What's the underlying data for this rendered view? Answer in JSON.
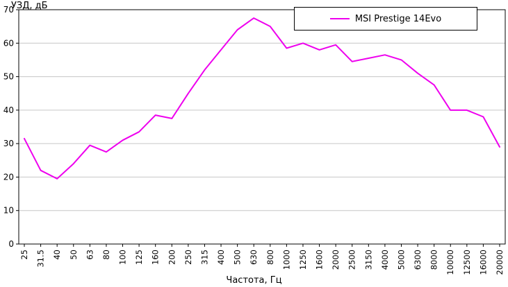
{
  "chart_data": {
    "type": "line",
    "title": "",
    "ylabel": "УЗД, дБ",
    "xlabel": "Частота, Гц",
    "ylim": [
      0,
      70
    ],
    "y_ticks": [
      0,
      10,
      20,
      30,
      40,
      50,
      60,
      70
    ],
    "grid": true,
    "legend_position": "top-right",
    "line_color": "#ee00ee",
    "grid_color": "#c6c6c6",
    "axis_color": "#000000",
    "categories": [
      "25",
      "31.5",
      "40",
      "50",
      "63",
      "80",
      "100",
      "125",
      "160",
      "200",
      "250",
      "315",
      "400",
      "500",
      "630",
      "800",
      "1000",
      "1250",
      "1600",
      "2000",
      "2500",
      "3150",
      "4000",
      "5000",
      "6300",
      "8000",
      "10000",
      "12500",
      "16000",
      "20000"
    ],
    "series": [
      {
        "name": "MSI Prestige 14Evo",
        "values": [
          31.5,
          22,
          19.5,
          24,
          29.5,
          27.5,
          31,
          33.5,
          38.5,
          37.5,
          45,
          52,
          58,
          64,
          67.5,
          65,
          58.5,
          60,
          58,
          59.5,
          54.5,
          55.5,
          56.5,
          55,
          51,
          47.5,
          40,
          40,
          38,
          29
        ]
      }
    ]
  }
}
